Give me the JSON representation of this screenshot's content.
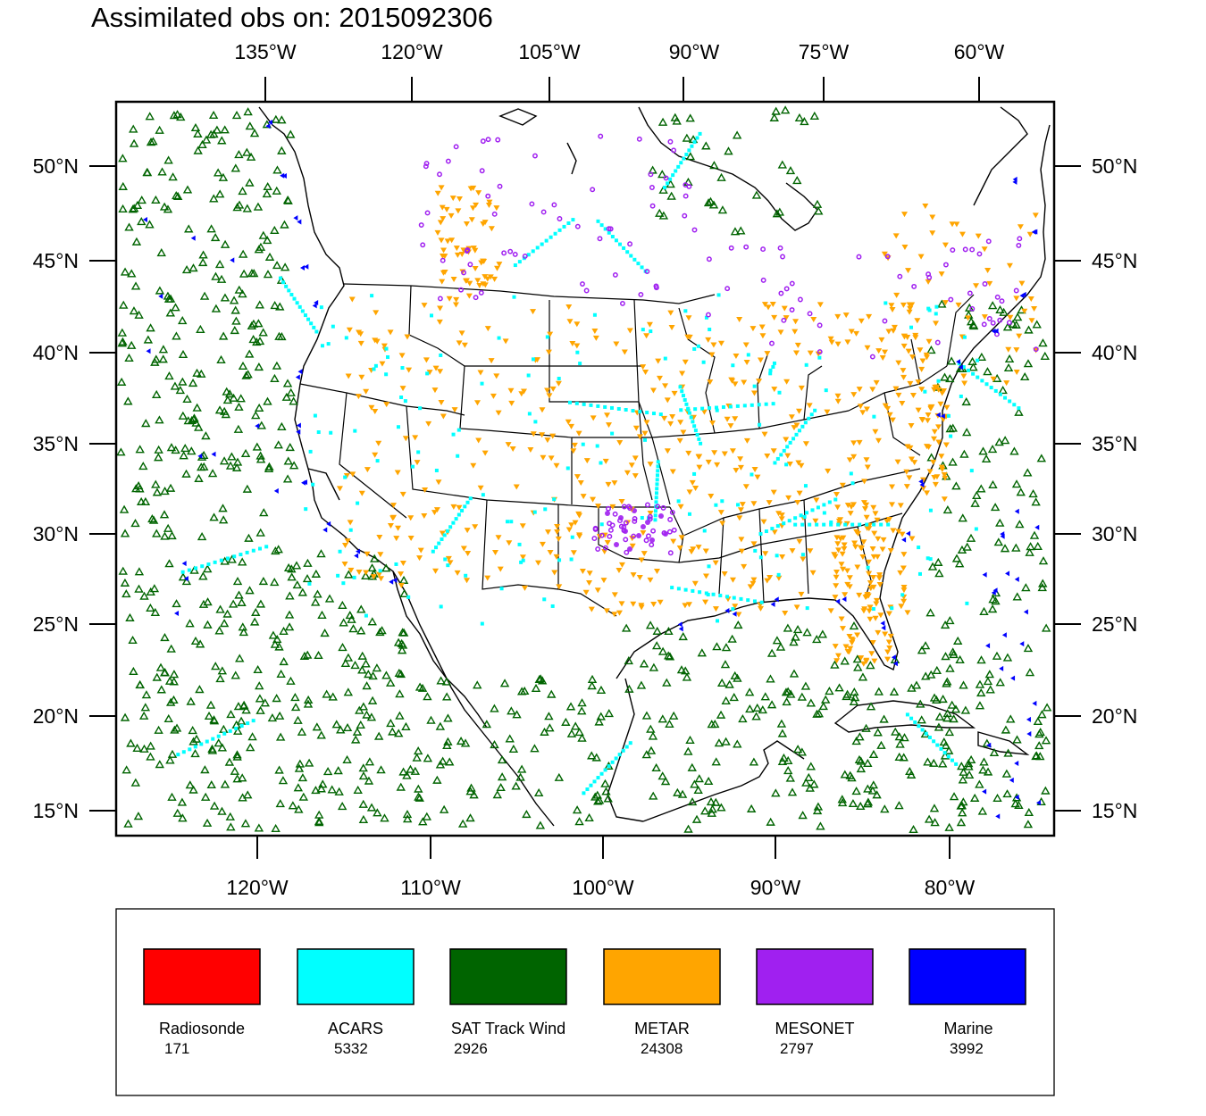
{
  "title": "Assimilated obs on: 2015092306",
  "colors": {
    "radiosonde": "#ff0000",
    "acars": "#00ffff",
    "sat_track_wind": "#006400",
    "metar": "#ffa500",
    "mesonet": "#a020f0",
    "marine": "#0000ff"
  },
  "axes": {
    "top_lon_labels": [
      "135°W",
      "120°W",
      "105°W",
      "90°W",
      "75°W",
      "60°W"
    ],
    "bottom_lon_labels": [
      "120°W",
      "110°W",
      "100°W",
      "90°W",
      "80°W"
    ],
    "lat_labels": [
      "50°N",
      "45°N",
      "40°N",
      "35°N",
      "30°N",
      "25°N",
      "20°N",
      "15°N"
    ]
  },
  "legend": [
    {
      "name": "Radiosonde",
      "count": "171",
      "color": "#ff0000"
    },
    {
      "name": "ACARS",
      "count": "5332",
      "color": "#00ffff"
    },
    {
      "name": "SAT Track Wind",
      "count": "2926",
      "color": "#006400"
    },
    {
      "name": "METAR",
      "count": "24308",
      "color": "#ffa500"
    },
    {
      "name": "MESONET",
      "count": "2797",
      "color": "#a020f0"
    },
    {
      "name": "Marine",
      "count": "3992",
      "color": "#0000ff"
    }
  ]
}
